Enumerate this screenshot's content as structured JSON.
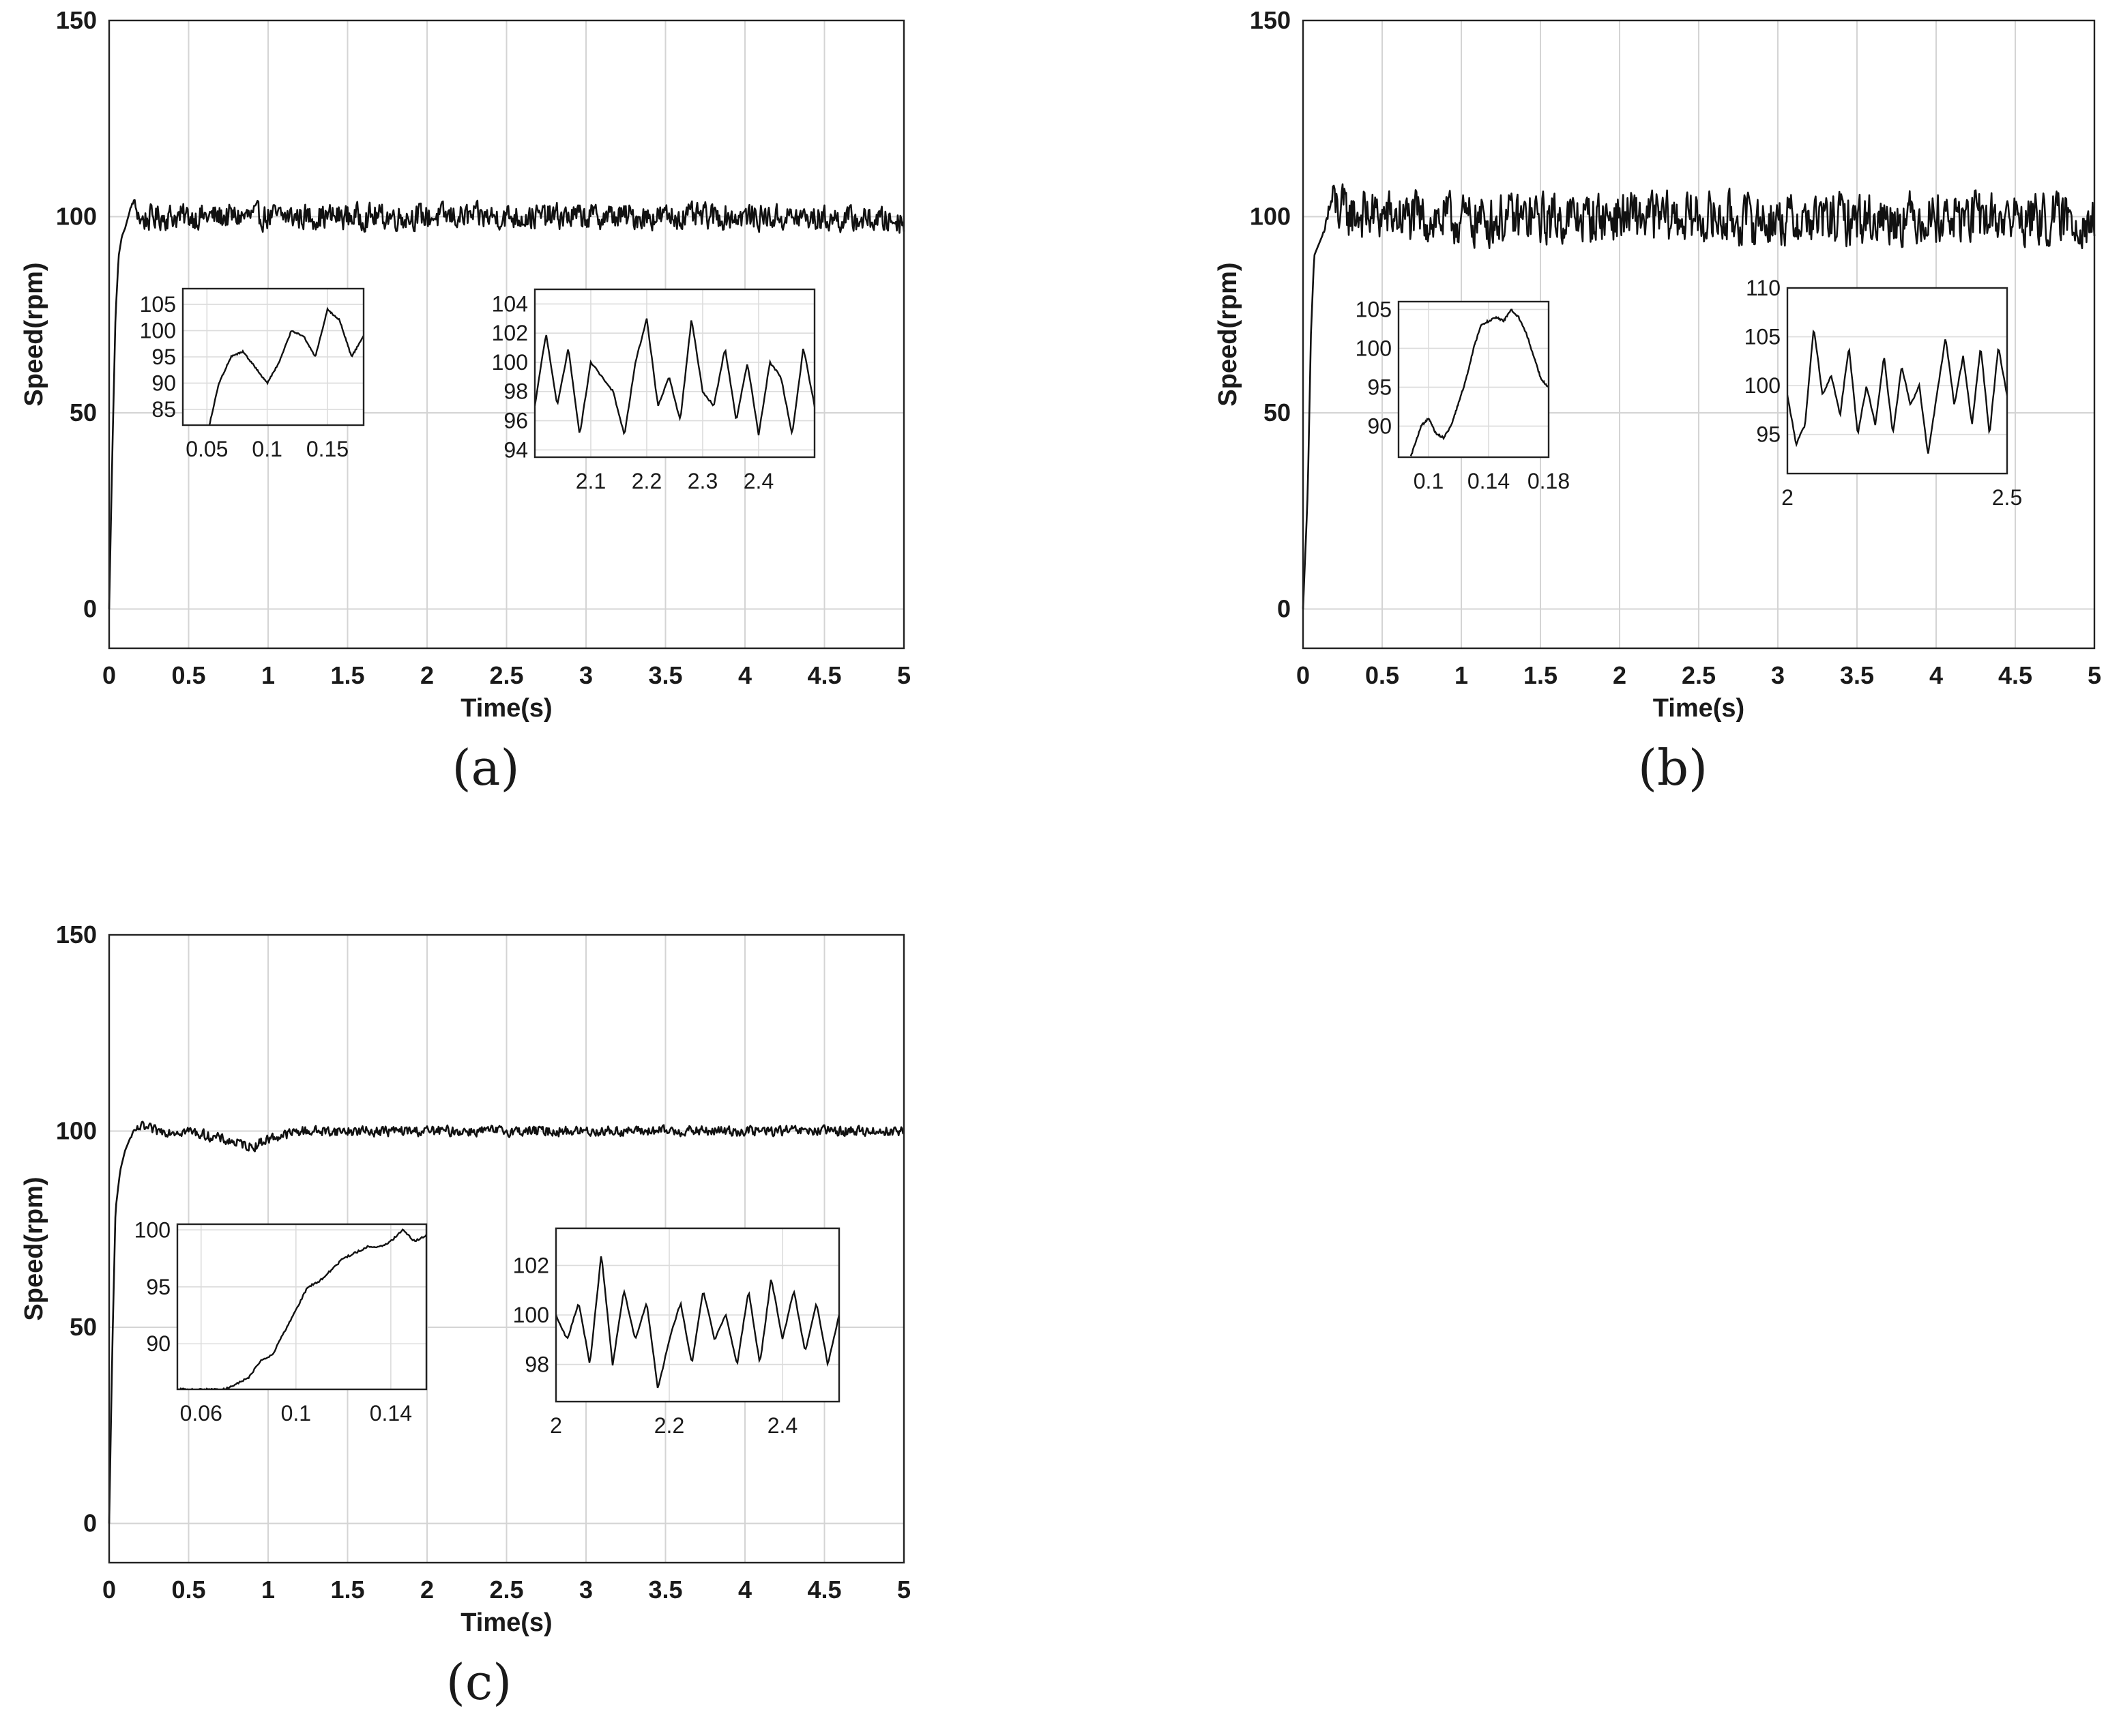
{
  "chart_data": [
    {
      "type": "line",
      "caption": "(a)",
      "xlabel": "Time(s)",
      "ylabel": "Speed(rpm)",
      "xlim": [
        0,
        5
      ],
      "ylim": [
        -10,
        150
      ],
      "xticks": [
        0,
        0.5,
        1,
        1.5,
        2,
        2.5,
        3,
        3.5,
        4,
        4.5,
        5
      ],
      "xticklabels": [
        "0",
        "0.5",
        "1",
        "1.5",
        "2",
        "2.5",
        "3",
        "3.5",
        "4",
        "4.5",
        "5"
      ],
      "yticks": [
        0,
        50,
        100,
        150
      ],
      "yticklabels": [
        "0",
        "50",
        "100",
        "150"
      ],
      "grid": true,
      "series": [
        {
          "x": [
            0,
            0.02,
            0.04,
            0.06,
            0.08,
            0.1,
            0.12,
            0.15,
            0.2,
            0.3,
            0.5,
            1,
            2,
            3,
            4,
            5
          ],
          "y": [
            0,
            40,
            75,
            90,
            95,
            97,
            100,
            104,
            99,
            100,
            100,
            100,
            100,
            100,
            100,
            99
          ],
          "noise": 3
        }
      ],
      "insets": [
        {
          "xlim": [
            0.03,
            0.18
          ],
          "ylim": [
            82,
            108
          ],
          "xticks": [
            0.05,
            0.1,
            0.15
          ],
          "xticklabels": [
            "0.05",
            "0.1",
            "0.15"
          ],
          "yticks": [
            85,
            90,
            95,
            100,
            105
          ],
          "yticklabels": [
            "85",
            "90",
            "95",
            "100",
            "105"
          ],
          "x": [
            0.03,
            0.05,
            0.06,
            0.07,
            0.08,
            0.09,
            0.1,
            0.11,
            0.12,
            0.13,
            0.14,
            0.15,
            0.16,
            0.17,
            0.18
          ],
          "y": [
            70,
            80,
            90,
            95,
            96,
            93,
            90,
            94,
            100,
            99,
            95,
            104,
            102,
            95,
            99
          ]
        },
        {
          "xlim": [
            2.0,
            2.5
          ],
          "ylim": [
            93.5,
            105
          ],
          "xticks": [
            2.1,
            2.2,
            2.3,
            2.4
          ],
          "xticklabels": [
            "2.1",
            "2.2",
            "2.3",
            "2.4"
          ],
          "yticks": [
            94,
            96,
            98,
            100,
            102,
            104
          ],
          "yticklabels": [
            "94",
            "96",
            "98",
            "100",
            "102",
            "104"
          ],
          "x": [
            2.0,
            2.02,
            2.04,
            2.06,
            2.08,
            2.1,
            2.12,
            2.14,
            2.16,
            2.18,
            2.2,
            2.22,
            2.24,
            2.26,
            2.28,
            2.3,
            2.32,
            2.34,
            2.36,
            2.38,
            2.4,
            2.42,
            2.44,
            2.46,
            2.48,
            2.5
          ],
          "y": [
            97,
            102,
            97,
            101,
            95,
            100,
            99,
            98,
            95,
            100,
            103,
            97,
            99,
            96,
            103,
            98,
            97,
            101,
            96,
            100,
            95,
            100,
            99,
            95,
            101,
            97
          ]
        }
      ]
    },
    {
      "type": "line",
      "caption": "(b)",
      "xlabel": "Time(s)",
      "ylabel": "Speed(rpm)",
      "xlim": [
        0,
        5
      ],
      "ylim": [
        -10,
        150
      ],
      "xticks": [
        0,
        0.5,
        1,
        1.5,
        2,
        2.5,
        3,
        3.5,
        4,
        4.5,
        5
      ],
      "xticklabels": [
        "0",
        "0.5",
        "1",
        "1.5",
        "2",
        "2.5",
        "3",
        "3.5",
        "4",
        "4.5",
        "5"
      ],
      "yticks": [
        0,
        50,
        100,
        150
      ],
      "yticklabels": [
        "0",
        "50",
        "100",
        "150"
      ],
      "grid": true,
      "series": [
        {
          "x": [
            0,
            0.03,
            0.05,
            0.07,
            0.1,
            0.13,
            0.18,
            0.25,
            0.5,
            1,
            2,
            3,
            4,
            5
          ],
          "y": [
            0,
            30,
            70,
            90,
            93,
            96,
            104,
            101,
            100,
            99,
            100,
            99,
            100,
            99
          ],
          "noise": 6
        }
      ],
      "insets": [
        {
          "xlim": [
            0.08,
            0.18
          ],
          "ylim": [
            86,
            106
          ],
          "xticks": [
            0.1,
            0.14,
            0.18
          ],
          "xticklabels": [
            "0.1",
            "0.14",
            "0.18"
          ],
          "yticks": [
            90,
            95,
            100,
            105
          ],
          "yticklabels": [
            "90",
            "95",
            "100",
            "105"
          ],
          "x": [
            0.088,
            0.095,
            0.1,
            0.105,
            0.11,
            0.115,
            0.12,
            0.125,
            0.13,
            0.135,
            0.14,
            0.145,
            0.15,
            0.155,
            0.16,
            0.165,
            0.17,
            0.175,
            0.18
          ],
          "y": [
            86,
            90,
            91,
            89,
            88.5,
            90,
            93,
            96,
            100,
            103,
            103.5,
            104,
            103.5,
            105,
            104,
            102,
            99,
            96,
            95
          ]
        },
        {
          "xlim": [
            2.0,
            2.5
          ],
          "ylim": [
            91,
            110
          ],
          "xticks": [
            2.0,
            2.5
          ],
          "xticklabels": [
            "2",
            "2.5"
          ],
          "yticks": [
            95,
            100,
            105,
            110
          ],
          "yticklabels": [
            "95",
            "100",
            "105",
            "110"
          ],
          "x": [
            2.0,
            2.02,
            2.04,
            2.06,
            2.08,
            2.1,
            2.12,
            2.14,
            2.16,
            2.18,
            2.2,
            2.22,
            2.24,
            2.26,
            2.28,
            2.3,
            2.32,
            2.34,
            2.36,
            2.38,
            2.4,
            2.42,
            2.44,
            2.46,
            2.48,
            2.5
          ],
          "y": [
            99,
            94,
            96,
            106,
            99,
            101,
            97,
            104,
            95,
            100,
            96,
            103,
            95,
            102,
            98,
            100,
            93,
            99,
            105,
            98,
            103,
            96,
            104,
            95,
            104,
            99
          ]
        }
      ]
    },
    {
      "type": "line",
      "caption": "(c)",
      "xlabel": "Time(s)",
      "ylabel": "Speed(rpm)",
      "xlim": [
        0,
        5
      ],
      "ylim": [
        -10,
        150
      ],
      "xticks": [
        0,
        0.5,
        1,
        1.5,
        2,
        2.5,
        3,
        3.5,
        4,
        4.5,
        5
      ],
      "xticklabels": [
        "0",
        "0.5",
        "1",
        "1.5",
        "2",
        "2.5",
        "3",
        "3.5",
        "4",
        "4.5",
        "5"
      ],
      "yticks": [
        0,
        50,
        100,
        150
      ],
      "yticklabels": [
        "0",
        "50",
        "100",
        "150"
      ],
      "grid": true,
      "series": [
        {
          "x": [
            0,
            0.02,
            0.04,
            0.07,
            0.1,
            0.13,
            0.16,
            0.2,
            0.3,
            0.5,
            0.6,
            0.7,
            0.8,
            0.9,
            1.0,
            1.2,
            1.5,
            2,
            3,
            4,
            5
          ],
          "y": [
            0,
            45,
            80,
            90,
            95,
            98,
            100,
            101,
            100,
            100,
            99,
            98,
            97,
            96,
            98,
            100,
            100,
            100,
            100,
            100,
            100
          ],
          "noise": 1.2
        }
      ],
      "insets": [
        {
          "xlim": [
            0.05,
            0.155
          ],
          "ylim": [
            86,
            100.5
          ],
          "xticks": [
            0.06,
            0.1,
            0.14
          ],
          "xticklabels": [
            "0.06",
            "0.1",
            "0.14"
          ],
          "yticks": [
            90,
            95,
            100
          ],
          "yticklabels": [
            "90",
            "95",
            "100"
          ],
          "x": [
            0.05,
            0.07,
            0.08,
            0.085,
            0.09,
            0.095,
            0.1,
            0.105,
            0.11,
            0.115,
            0.12,
            0.125,
            0.13,
            0.135,
            0.14,
            0.145,
            0.15,
            0.155
          ],
          "y": [
            86,
            86,
            87,
            88.5,
            89,
            91,
            93,
            95,
            95.5,
            96.5,
            97.5,
            98,
            98.5,
            98.5,
            99,
            100,
            99,
            99.5
          ]
        },
        {
          "xlim": [
            2.0,
            2.5
          ],
          "ylim": [
            96.5,
            103.5
          ],
          "xticks": [
            2.0,
            2.2,
            2.4
          ],
          "xticklabels": [
            "2",
            "2.2",
            "2.4"
          ],
          "yticks": [
            98,
            100,
            102
          ],
          "yticklabels": [
            "98",
            "100",
            "102"
          ],
          "x": [
            2.0,
            2.02,
            2.04,
            2.06,
            2.08,
            2.1,
            2.12,
            2.14,
            2.16,
            2.18,
            2.2,
            2.22,
            2.24,
            2.26,
            2.28,
            2.3,
            2.32,
            2.34,
            2.36,
            2.38,
            2.4,
            2.42,
            2.44,
            2.46,
            2.48,
            2.5
          ],
          "y": [
            100,
            99,
            100.5,
            98,
            102.5,
            98,
            101,
            99,
            100.5,
            97,
            99,
            100.5,
            98,
            101,
            99,
            100,
            98,
            101,
            98,
            101.5,
            99,
            101,
            98.5,
            100.5,
            98,
            100
          ]
        }
      ]
    }
  ]
}
